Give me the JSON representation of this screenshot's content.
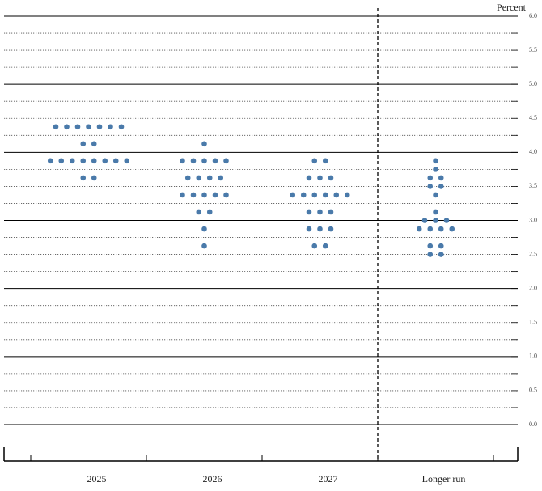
{
  "chart_data": {
    "type": "dot",
    "y_label": "Percent",
    "categories": [
      "2025",
      "2026",
      "2027",
      "Longer run"
    ],
    "color": "#4a7aaa",
    "values": [
      [
        4.375,
        4.375,
        4.375,
        4.375,
        4.375,
        4.375,
        4.375,
        4.125,
        4.125,
        3.875,
        3.875,
        3.875,
        3.875,
        3.875,
        3.875,
        3.875,
        3.875,
        3.625,
        3.625
      ],
      [
        4.125,
        3.875,
        3.875,
        3.875,
        3.875,
        3.875,
        3.625,
        3.625,
        3.625,
        3.625,
        3.375,
        3.375,
        3.375,
        3.375,
        3.375,
        3.125,
        3.125,
        2.875,
        2.625
      ],
      [
        3.875,
        3.875,
        3.625,
        3.625,
        3.625,
        3.375,
        3.375,
        3.375,
        3.375,
        3.375,
        3.375,
        3.125,
        3.125,
        3.125,
        2.875,
        2.875,
        2.875,
        2.625,
        2.625
      ],
      [
        3.875,
        3.75,
        3.625,
        3.625,
        3.5,
        3.5,
        3.375,
        3.125,
        3.0,
        3.0,
        3.0,
        2.875,
        2.875,
        2.875,
        2.875,
        2.625,
        2.625,
        2.5,
        2.5
      ]
    ],
    "ylim": [
      0,
      6
    ],
    "yticks": [
      {
        "value": 0,
        "label": "0.0"
      },
      0.5,
      {
        "value": 1,
        "label": "1.0"
      },
      1.5,
      {
        "value": 2,
        "label": "2.0"
      },
      2.5,
      {
        "value": 3,
        "label": "3.0"
      },
      3.5,
      {
        "value": 4,
        "label": "4.0"
      },
      4.5,
      {
        "value": 5,
        "label": "5.0"
      },
      5.5,
      {
        "value": 6,
        "label": "6.0"
      }
    ],
    "grid": true
  }
}
